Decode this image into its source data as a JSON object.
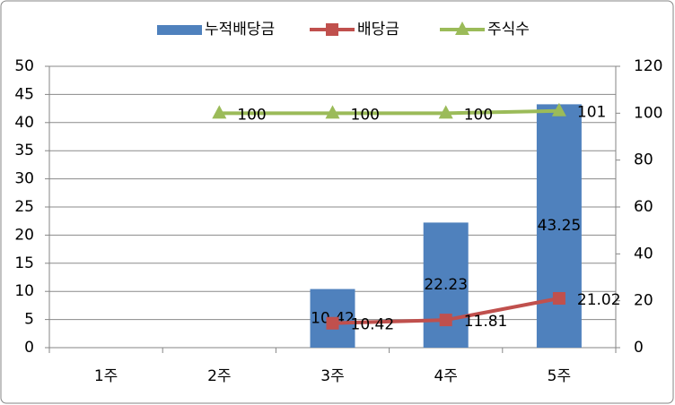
{
  "chart_data": {
    "type": "combo",
    "categories": [
      "1주",
      "2주",
      "3주",
      "4주",
      "5주"
    ],
    "series": [
      {
        "name": "누적배당금",
        "type": "bar",
        "color": "#4f81bd",
        "axis": "y",
        "values": [
          null,
          null,
          10.42,
          22.23,
          43.25
        ]
      },
      {
        "name": "배당금",
        "type": "line",
        "marker": "square",
        "color": "#c0504d",
        "axis": "y2",
        "values": [
          null,
          null,
          10.42,
          11.81,
          21.02
        ]
      },
      {
        "name": "주식수",
        "type": "line",
        "marker": "triangle",
        "color": "#9bbb59",
        "axis": "y2",
        "values": [
          null,
          100,
          100,
          100,
          101
        ]
      }
    ],
    "ylim": [
      0,
      50
    ],
    "yticks": [
      0,
      5,
      10,
      15,
      20,
      25,
      30,
      35,
      40,
      45,
      50
    ],
    "y2lim": [
      0,
      120
    ],
    "y2ticks": [
      0,
      20,
      40,
      60,
      80,
      100,
      120
    ],
    "grid": true,
    "legend": "top"
  }
}
